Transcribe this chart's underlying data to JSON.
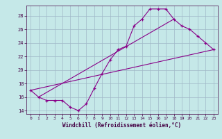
{
  "xlabel": "Windchill (Refroidissement éolien,°C)",
  "bg_color": "#c5e8e8",
  "grid_color": "#a0b8c8",
  "line_color": "#880088",
  "xlim": [
    -0.5,
    23.5
  ],
  "ylim": [
    13.5,
    29.5
  ],
  "yticks": [
    14,
    16,
    18,
    20,
    22,
    24,
    26,
    28
  ],
  "xticks": [
    0,
    1,
    2,
    3,
    4,
    5,
    6,
    7,
    8,
    9,
    10,
    11,
    12,
    13,
    14,
    15,
    16,
    17,
    18,
    19,
    20,
    21,
    22,
    23
  ],
  "line1_x": [
    0,
    1,
    2,
    3,
    4,
    5,
    6,
    7,
    8,
    9,
    10,
    11,
    12,
    13,
    14,
    15,
    16,
    17,
    18,
    19,
    20,
    21,
    22,
    23
  ],
  "line1_y": [
    17.0,
    16.0,
    15.5,
    15.5,
    15.5,
    14.5,
    14.0,
    15.0,
    17.3,
    19.5,
    21.5,
    23.0,
    23.5,
    26.5,
    27.5,
    29.0,
    29.0,
    29.0,
    27.5,
    26.5,
    26.0,
    25.0,
    24.0,
    23.0
  ],
  "line2_x": [
    0,
    23
  ],
  "line2_y": [
    17.0,
    23.0
  ],
  "line3_x": [
    1,
    18
  ],
  "line3_y": [
    16.0,
    27.5
  ]
}
